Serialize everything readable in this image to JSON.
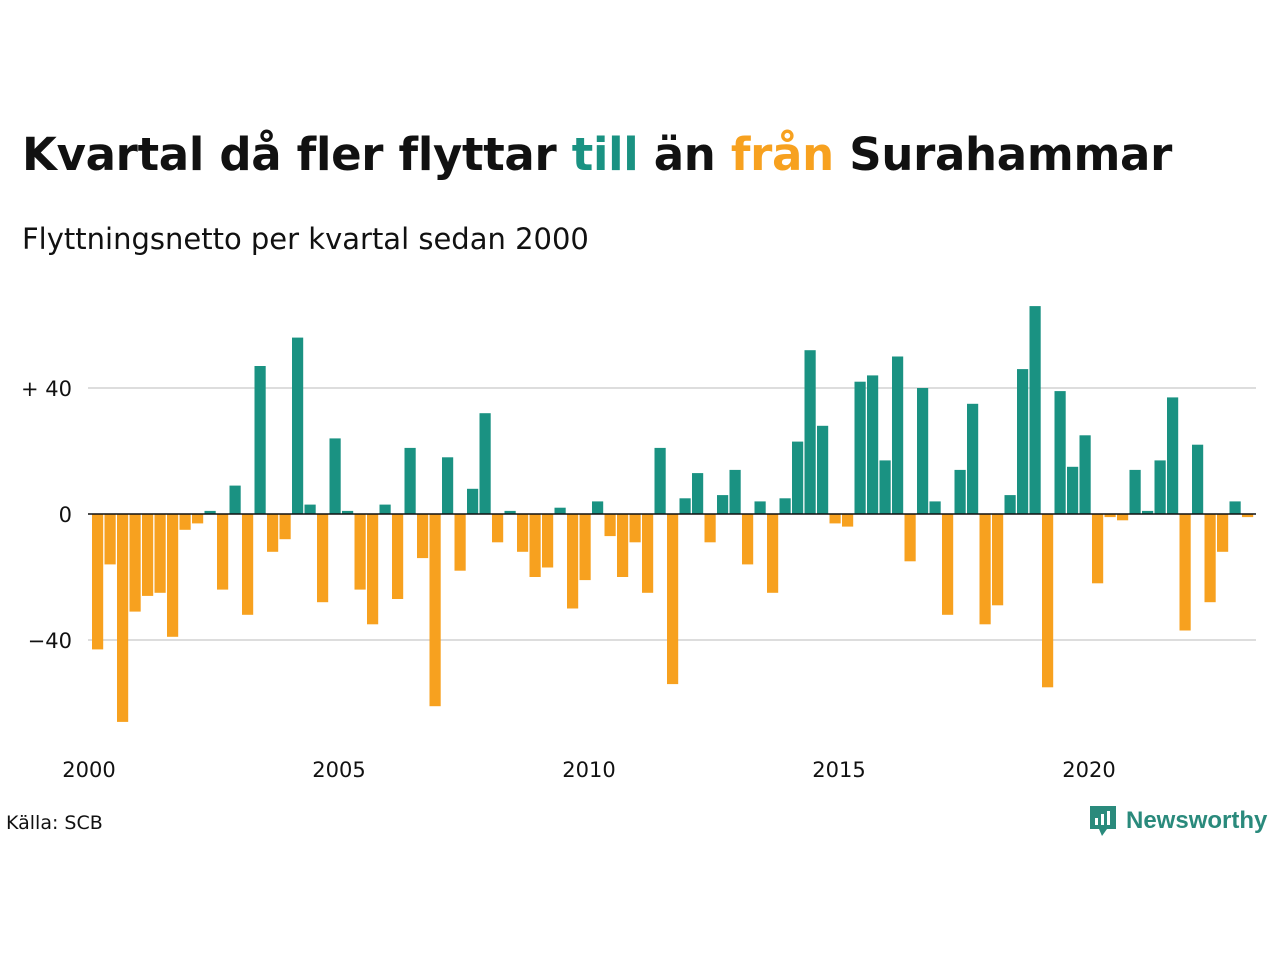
{
  "title": {
    "part1": "Kvartal då fler flyttar ",
    "part2": "till",
    "part3": " än ",
    "part4": "från",
    "part5": " Surahammar"
  },
  "subtitle": "Flyttningsnetto per kvartal sedan 2000",
  "source": "Källa: SCB",
  "brand": "Newsworthy",
  "colors": {
    "positive": "#1a9282",
    "negative": "#f7a11f",
    "grid": "#dddddd",
    "zero_line": "#111111"
  },
  "chart_data": {
    "type": "bar",
    "x_start": "2000 Q1",
    "x_tick_labels": [
      "2000",
      "2005",
      "2010",
      "2015",
      "2020"
    ],
    "y_tick_labels": [
      "+ 40",
      "0",
      "−40"
    ],
    "y_ticks": [
      40,
      0,
      -40
    ],
    "ylim": [
      -70,
      68
    ],
    "grid": true,
    "values": [
      -43,
      -16,
      -66,
      -31,
      -26,
      -25,
      -39,
      -5,
      -3,
      1,
      -24,
      9,
      -32,
      47,
      -12,
      -8,
      56,
      3,
      -28,
      24,
      1,
      -24,
      -35,
      3,
      -27,
      21,
      -14,
      -61,
      18,
      -18,
      8,
      32,
      -9,
      1,
      -12,
      -20,
      -17,
      2,
      -30,
      -21,
      4,
      -7,
      -20,
      -9,
      -25,
      21,
      -54,
      5,
      13,
      -9,
      6,
      14,
      -16,
      4,
      -25,
      5,
      23,
      52,
      28,
      -3,
      -4,
      42,
      44,
      17,
      50,
      -15,
      40,
      4,
      -32,
      14,
      35,
      -35,
      -29,
      6,
      46,
      66,
      -55,
      39,
      15,
      25,
      -22,
      -1,
      -2,
      14,
      1,
      17,
      37,
      -37,
      22,
      -28,
      -12,
      4,
      -1
    ]
  }
}
